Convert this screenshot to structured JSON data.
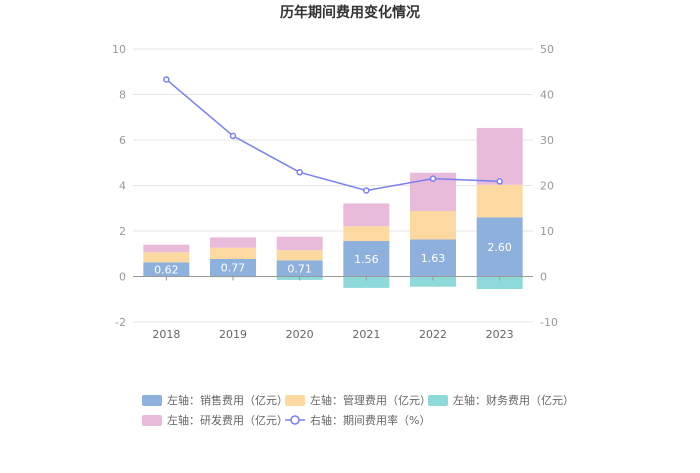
{
  "chart_data": {
    "type": "bar",
    "title": "历年期间费用变化情况",
    "categories": [
      "2018",
      "2019",
      "2020",
      "2021",
      "2022",
      "2023"
    ],
    "left_axis": {
      "ylim": [
        -2,
        10
      ],
      "ticks": [
        "-2",
        "0",
        "2",
        "4",
        "6",
        "8",
        "10"
      ]
    },
    "right_axis": {
      "ylim": [
        -10,
        50
      ],
      "ticks": [
        "-10",
        "0",
        "10",
        "20",
        "30",
        "40",
        "50"
      ]
    },
    "series": [
      {
        "name": "左轴：销售费用（亿元）",
        "axis": "left",
        "kind": "bar",
        "values": [
          0.62,
          0.77,
          0.71,
          1.56,
          1.63,
          2.6
        ],
        "labels": [
          "0.62",
          "0.77",
          "0.71",
          "1.56",
          "1.63",
          "2.60"
        ],
        "color": "#8eb0dc"
      },
      {
        "name": "左轴：管理费用（亿元）",
        "axis": "left",
        "kind": "bar",
        "values": [
          0.45,
          0.5,
          0.45,
          0.65,
          1.25,
          1.43
        ],
        "color": "#fbd9a0"
      },
      {
        "name": "左轴：财务费用（亿元）",
        "axis": "left",
        "kind": "bar",
        "values": [
          -0.02,
          -0.03,
          -0.15,
          -0.5,
          -0.45,
          -0.55
        ],
        "color": "#8ed9d9"
      },
      {
        "name": "左轴：研发费用（亿元）",
        "axis": "left",
        "kind": "bar",
        "values": [
          0.33,
          0.45,
          0.59,
          1.0,
          1.68,
          2.5
        ],
        "color": "#e8bbdb"
      },
      {
        "name": "右轴：期间费用率（%）",
        "axis": "right",
        "kind": "line",
        "values": [
          43.3,
          30.9,
          22.9,
          18.9,
          21.5,
          20.9
        ],
        "color": "#7b7fee"
      }
    ],
    "legend_position": "bottom"
  }
}
